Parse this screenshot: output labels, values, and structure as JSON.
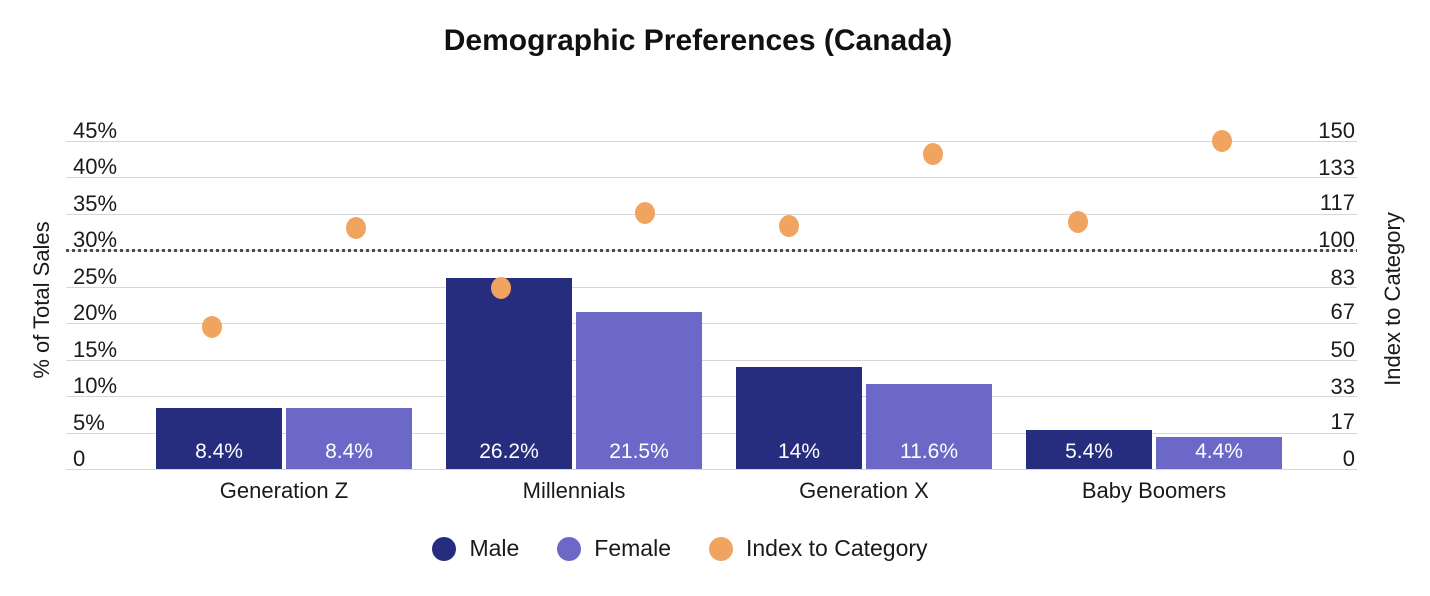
{
  "chart_data": {
    "type": "combo-bar-scatter",
    "title": "Demographic Preferences (Canada)",
    "categories": [
      "Generation Z",
      "Millennials",
      "Generation X",
      "Baby Boomers"
    ],
    "bar_series": [
      {
        "name": "Male",
        "color": "#272D7E",
        "values": [
          8.4,
          26.2,
          14,
          5.4
        ],
        "value_labels": [
          "8.4%",
          "26.2%",
          "14%",
          "5.4%"
        ]
      },
      {
        "name": "Female",
        "color": "#6C68C8",
        "values": [
          8.4,
          21.5,
          11.6,
          4.4
        ],
        "value_labels": [
          "8.4%",
          "21.5%",
          "11.6%",
          "4.4%"
        ]
      }
    ],
    "scatter_series": {
      "name": "Index to Category",
      "color": "#F0A45F",
      "points": [
        {
          "category": "Generation Z",
          "group": "Male",
          "index": 65
        },
        {
          "category": "Generation Z",
          "group": "Female",
          "index": 110
        },
        {
          "category": "Millennials",
          "group": "Male",
          "index": 83
        },
        {
          "category": "Millennials",
          "group": "Female",
          "index": 117
        },
        {
          "category": "Generation X",
          "group": "Male",
          "index": 111
        },
        {
          "category": "Generation X",
          "group": "Female",
          "index": 144
        },
        {
          "category": "Baby Boomers",
          "group": "Male",
          "index": 113
        },
        {
          "category": "Baby Boomers",
          "group": "Female",
          "index": 150
        }
      ]
    },
    "left_axis": {
      "title": "% of Total Sales",
      "range": [
        0,
        45
      ],
      "ticks": [
        {
          "label": "45%",
          "value": 45
        },
        {
          "label": "40%",
          "value": 40
        },
        {
          "label": "35%",
          "value": 35
        },
        {
          "label": "30%",
          "value": 30
        },
        {
          "label": "25%",
          "value": 25
        },
        {
          "label": "20%",
          "value": 20
        },
        {
          "label": "15%",
          "value": 15
        },
        {
          "label": "10%",
          "value": 10
        },
        {
          "label": "5%",
          "value": 5
        },
        {
          "label": "0",
          "value": 0
        }
      ]
    },
    "right_axis": {
      "title": "Index to Category",
      "range": [
        0,
        150
      ],
      "ticks": [
        {
          "label": "150",
          "value": 150
        },
        {
          "label": "133",
          "value": 133
        },
        {
          "label": "117",
          "value": 117
        },
        {
          "label": "100",
          "value": 100
        },
        {
          "label": "83",
          "value": 83
        },
        {
          "label": "67",
          "value": 67
        },
        {
          "label": "50",
          "value": 50
        },
        {
          "label": "33",
          "value": 33
        },
        {
          "label": "17",
          "value": 17
        },
        {
          "label": "0",
          "value": 0
        }
      ]
    },
    "reference_line": {
      "axis": "right",
      "value": 100,
      "style": "dotted",
      "color": "#4d4d4d"
    },
    "legend": [
      {
        "label": "Male",
        "color": "#272D7E"
      },
      {
        "label": "Female",
        "color": "#6C68C8"
      },
      {
        "label": "Index to Category",
        "color": "#F0A45F"
      }
    ],
    "gridlines": true,
    "legend_position": "bottom-center"
  }
}
